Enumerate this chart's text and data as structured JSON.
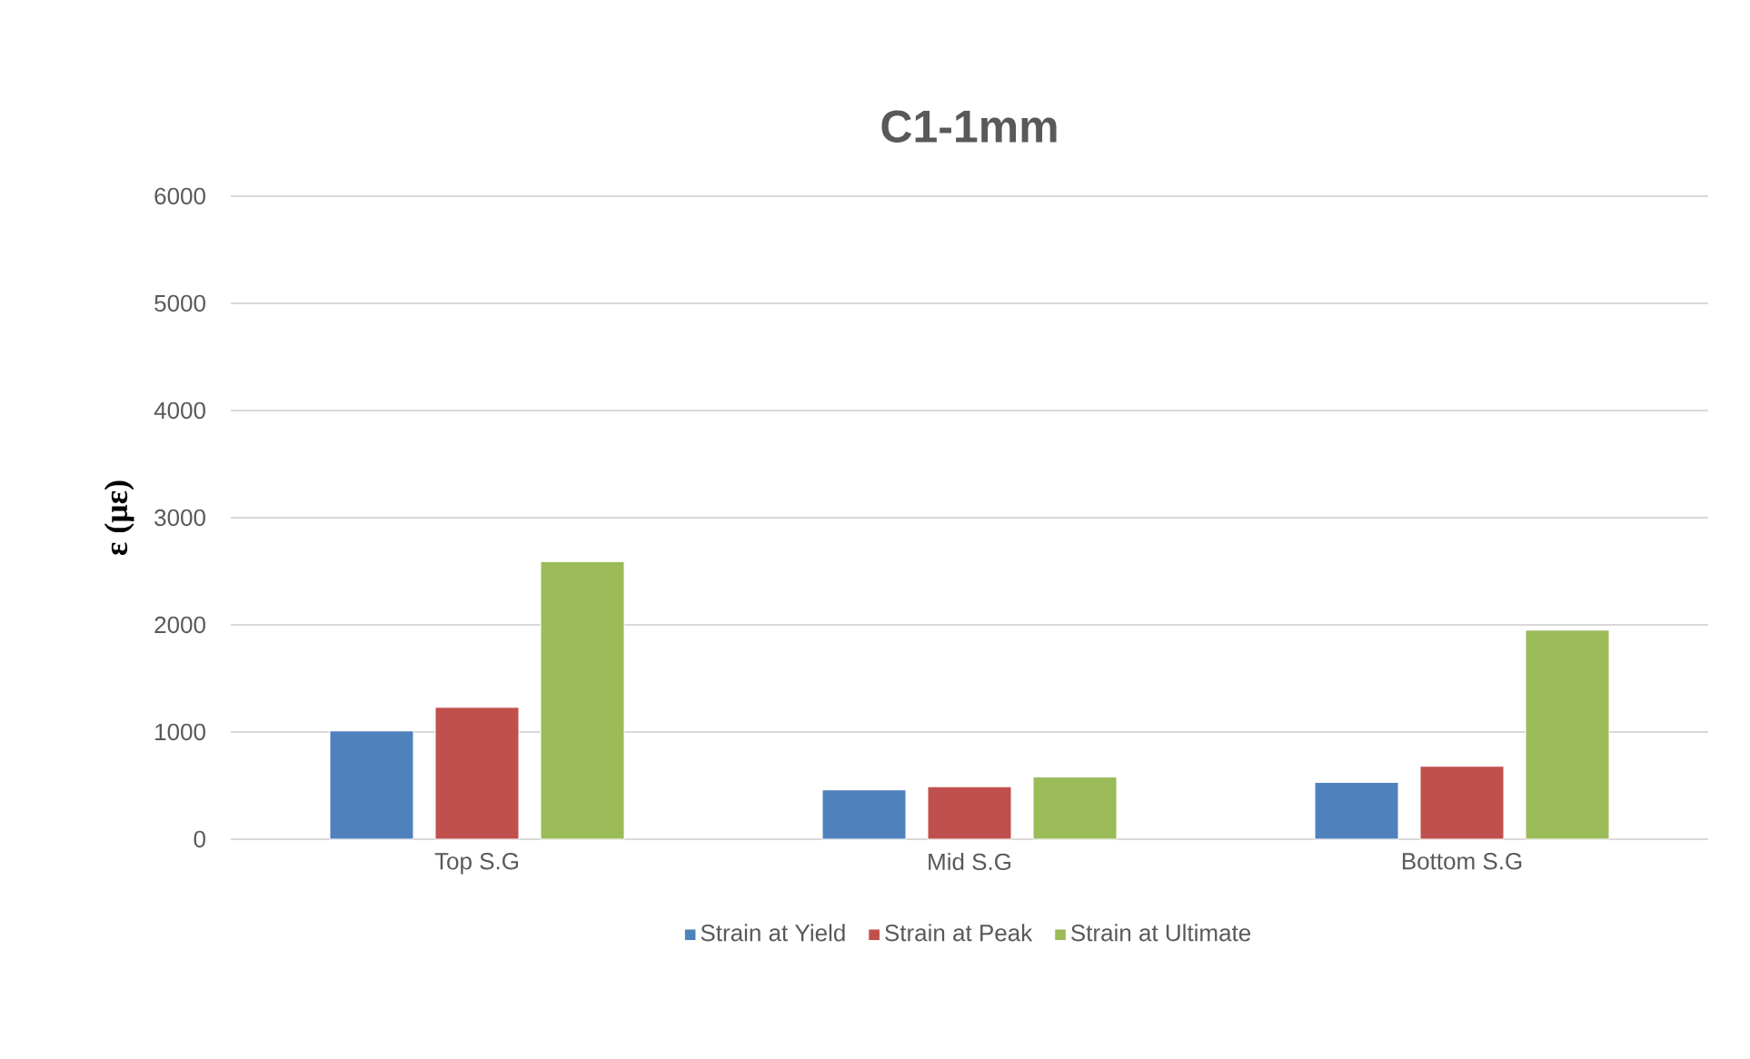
{
  "chart_data": {
    "type": "bar",
    "title": "C1-1mm",
    "ylabel": "ε (με)",
    "categories": [
      "Top S.G",
      "Mid S.G",
      "Bottom S.G"
    ],
    "series": [
      {
        "name": "Strain at Yield",
        "color": "#4f81bd",
        "values": [
          1010,
          460,
          530
        ]
      },
      {
        "name": "Strain at Peak",
        "color": "#c0504d",
        "values": [
          1230,
          490,
          680
        ]
      },
      {
        "name": "Strain at Ultimate",
        "color": "#9bbb59",
        "values": [
          2590,
          580,
          1950
        ]
      }
    ],
    "ylim": [
      0,
      6000
    ],
    "yticks": [
      0,
      1000,
      2000,
      3000,
      4000,
      5000,
      6000
    ],
    "grid": "y",
    "legend": "bottom"
  }
}
